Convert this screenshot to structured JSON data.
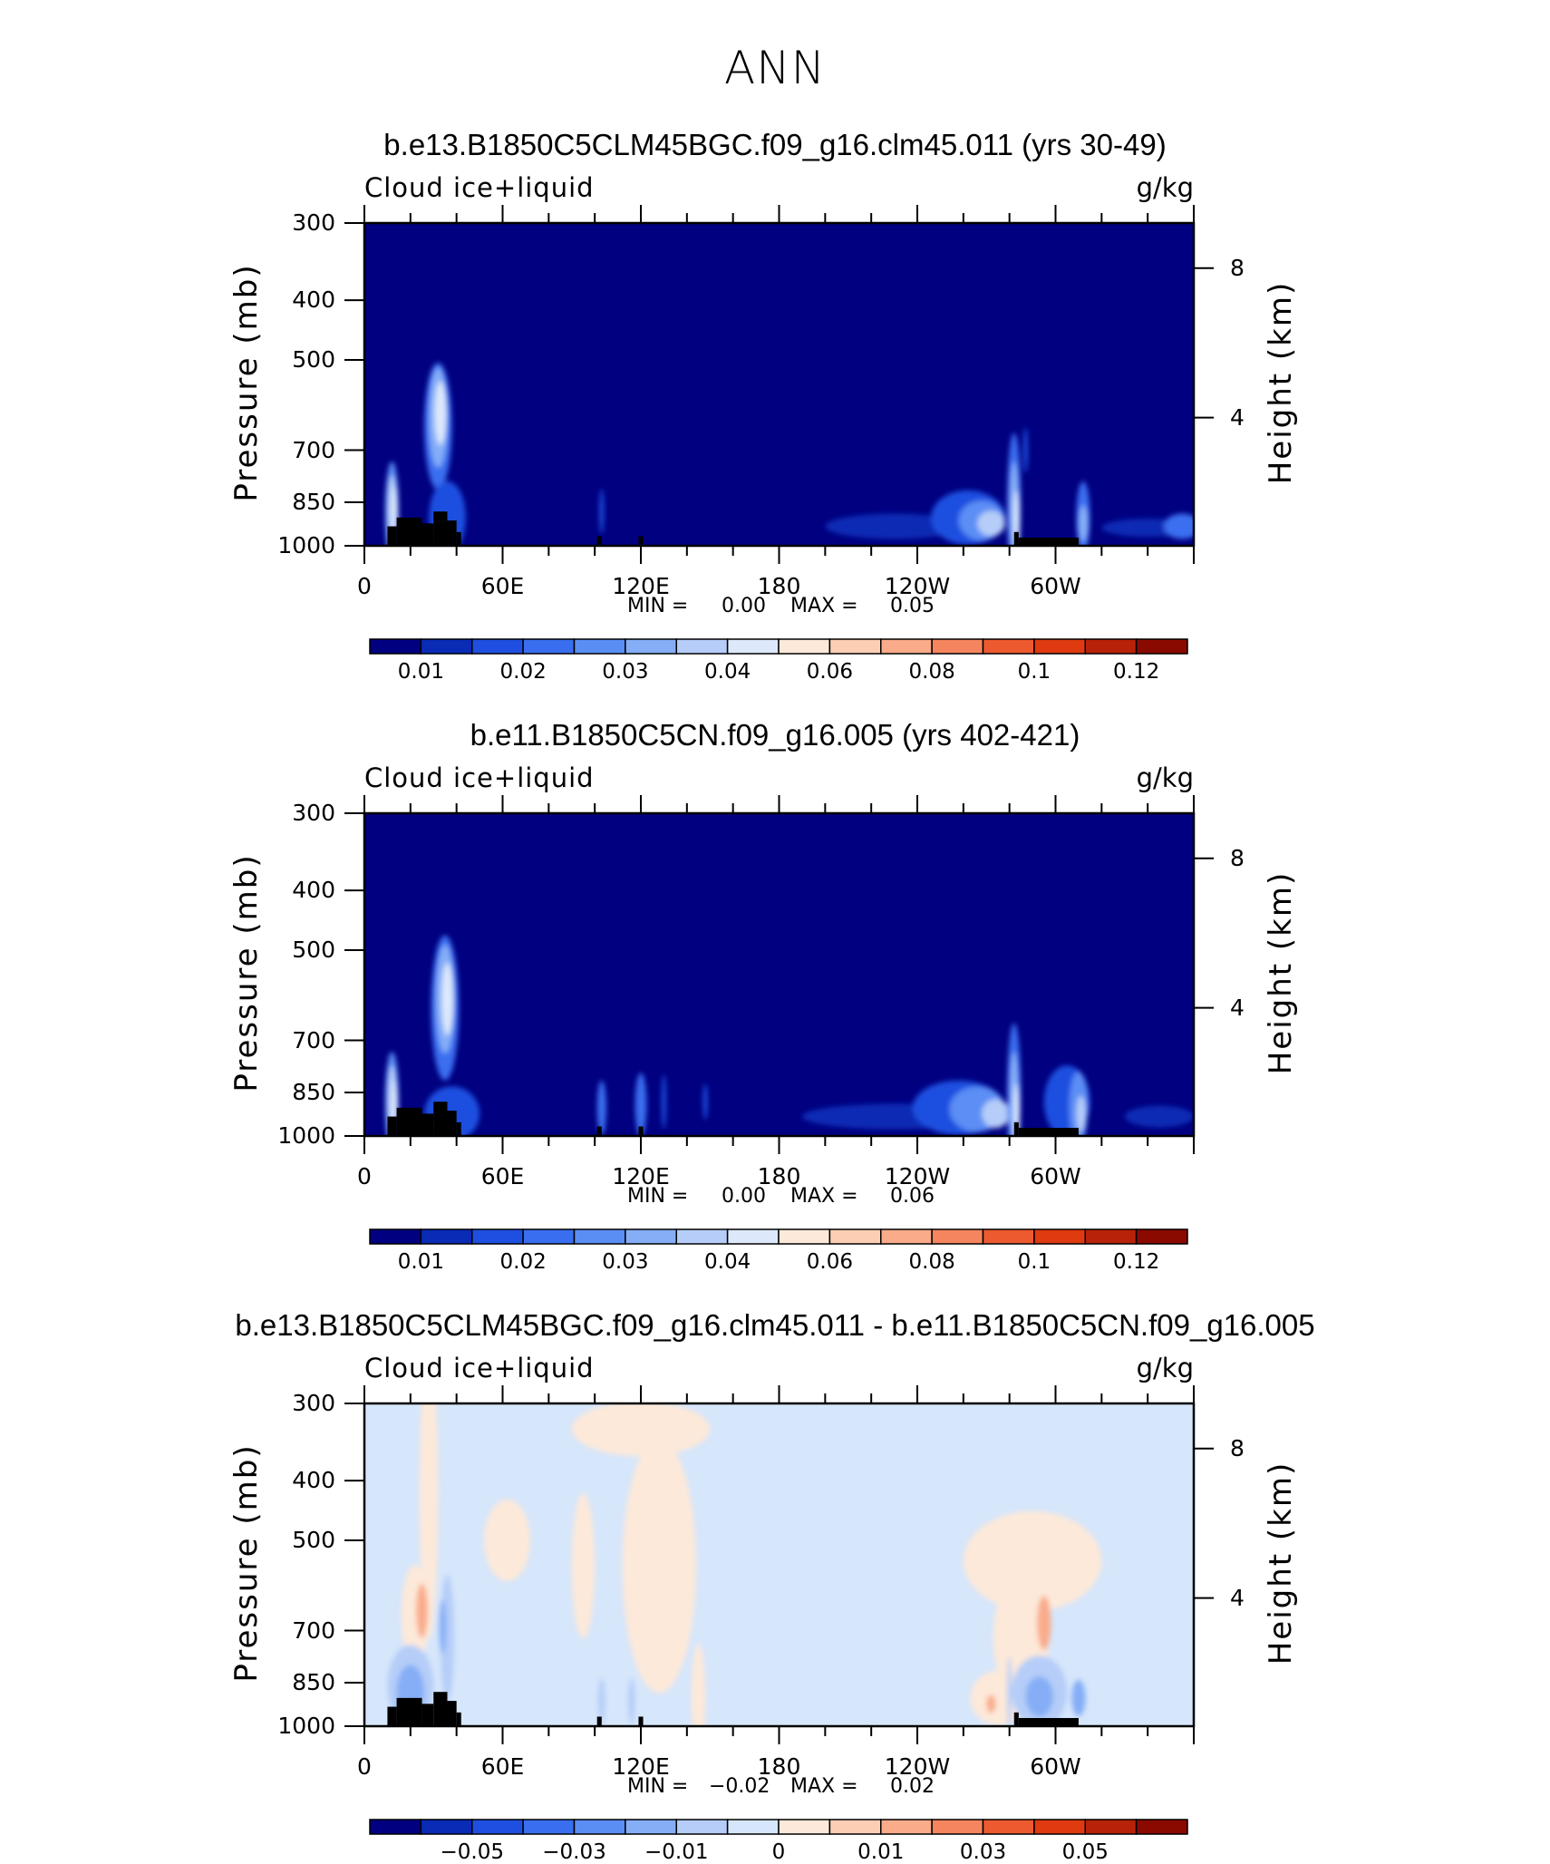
{
  "figure": {
    "title": "ANN"
  },
  "panels": [
    {
      "title": "b.e13.B1850C5CLM45BGC.f09_g16.clm45.011 (yrs 30-49)",
      "variable": "Cloud ice+liquid",
      "units": "g/kg",
      "ylabel_left": "Pressure (mb)",
      "ylabel_right": "Height (km)",
      "pressure_ticks": [
        "300",
        "400",
        "500",
        "700",
        "850",
        "1000"
      ],
      "height_ticks": [
        "8",
        "4"
      ],
      "x_ticks": [
        "0",
        "60E",
        "120E",
        "180",
        "120W",
        "60W"
      ],
      "min_label": "MIN =",
      "min_value": "0.00",
      "max_label": "MAX =",
      "max_value": "0.05",
      "colorbar_labels": [
        "0.01",
        "0.02",
        "0.03",
        "0.04",
        "0.06",
        "0.08",
        "0.1",
        "0.12"
      ]
    },
    {
      "title": "b.e11.B1850C5CN.f09_g16.005 (yrs 402-421)",
      "variable": "Cloud ice+liquid",
      "units": "g/kg",
      "ylabel_left": "Pressure (mb)",
      "ylabel_right": "Height (km)",
      "pressure_ticks": [
        "300",
        "400",
        "500",
        "700",
        "850",
        "1000"
      ],
      "height_ticks": [
        "8",
        "4"
      ],
      "x_ticks": [
        "0",
        "60E",
        "120E",
        "180",
        "120W",
        "60W"
      ],
      "min_label": "MIN =",
      "min_value": "0.00",
      "max_label": "MAX =",
      "max_value": "0.06",
      "colorbar_labels": [
        "0.01",
        "0.02",
        "0.03",
        "0.04",
        "0.06",
        "0.08",
        "0.1",
        "0.12"
      ]
    },
    {
      "title": "b.e13.B1850C5CLM45BGC.f09_g16.clm45.011 - b.e11.B1850C5CN.f09_g16.005",
      "variable": "Cloud ice+liquid",
      "units": "g/kg",
      "ylabel_left": "Pressure (mb)",
      "ylabel_right": "Height (km)",
      "pressure_ticks": [
        "300",
        "400",
        "500",
        "700",
        "850",
        "1000"
      ],
      "height_ticks": [
        "8",
        "4"
      ],
      "x_ticks": [
        "0",
        "60E",
        "120E",
        "180",
        "120W",
        "60W"
      ],
      "min_label": "MIN =",
      "min_value": "−0.02",
      "max_label": "MAX =",
      "max_value": "0.02",
      "colorbar_labels": [
        "−0.05",
        "−0.03",
        "−0.01",
        "0",
        "0.01",
        "0.03",
        "0.05"
      ]
    }
  ],
  "colors": {
    "abs_scale": [
      "#000080",
      "#0a2bb5",
      "#1f4fe0",
      "#3a6ef0",
      "#5b8ef5",
      "#85aef7",
      "#b5cdf8",
      "#dde9fb",
      "#fde9d9",
      "#fccfb5",
      "#f9ab8a",
      "#f5855e",
      "#ee5a2f",
      "#df3a10",
      "#b82208",
      "#8b0a00"
    ],
    "diff_scale": [
      "#000080",
      "#0a2bb5",
      "#1f4fe0",
      "#3a6ef0",
      "#5b8ef5",
      "#85aef7",
      "#b5cdf8",
      "#d6e6fb",
      "#fde9d9",
      "#fccfb5",
      "#f9ab8a",
      "#f5855e",
      "#ee5a2f",
      "#df3a10",
      "#b82208",
      "#8b0a00"
    ],
    "field_background": "#000080",
    "diff_background": "#d6e6fb",
    "terrain": "#000000"
  },
  "chart_data": [
    {
      "type": "heatmap",
      "title": "b.e13.B1850C5CLM45BGC.f09_g16.clm45.011 (yrs 30-49)",
      "subtitle": "Cloud ice+liquid",
      "units": "g/kg",
      "xlabel": "",
      "ylabel": "Pressure (mb)",
      "ylabel_right": "Height (km)",
      "x_ticks": [
        "0",
        "60E",
        "120E",
        "180",
        "120W",
        "60W"
      ],
      "y_ticks": [
        300,
        400,
        500,
        700,
        850,
        1000
      ],
      "y_scale": "log-pressure",
      "ylim": [
        1000,
        300
      ],
      "min": 0.0,
      "max": 0.05,
      "contour_levels": [
        0.005,
        0.01,
        0.015,
        0.02,
        0.025,
        0.03,
        0.035,
        0.04,
        0.05,
        0.06,
        0.07,
        0.08,
        0.09,
        0.1,
        0.11,
        0.12
      ],
      "features": [
        {
          "lon": 12,
          "p": 870,
          "value": 0.045
        },
        {
          "lon": 32,
          "p": 620,
          "value": 0.04
        },
        {
          "lon": 280,
          "p": 880,
          "value": 0.05
        },
        {
          "lon": 265,
          "p": 900,
          "value": 0.03
        }
      ]
    },
    {
      "type": "heatmap",
      "title": "b.e11.B1850C5CN.f09_g16.005 (yrs 402-421)",
      "subtitle": "Cloud ice+liquid",
      "units": "g/kg",
      "xlabel": "",
      "ylabel": "Pressure (mb)",
      "ylabel_right": "Height (km)",
      "x_ticks": [
        "0",
        "60E",
        "120E",
        "180",
        "120W",
        "60W"
      ],
      "y_ticks": [
        300,
        400,
        500,
        700,
        850,
        1000
      ],
      "y_scale": "log-pressure",
      "ylim": [
        1000,
        300
      ],
      "min": 0.0,
      "max": 0.06,
      "contour_levels": [
        0.005,
        0.01,
        0.015,
        0.02,
        0.025,
        0.03,
        0.035,
        0.04,
        0.05,
        0.06,
        0.07,
        0.08,
        0.09,
        0.1,
        0.11,
        0.12
      ],
      "features": [
        {
          "lon": 12,
          "p": 870,
          "value": 0.05
        },
        {
          "lon": 35,
          "p": 600,
          "value": 0.05
        },
        {
          "lon": 280,
          "p": 880,
          "value": 0.06
        },
        {
          "lon": 310,
          "p": 900,
          "value": 0.04
        }
      ]
    },
    {
      "type": "heatmap",
      "title": "b.e13.B1850C5CLM45BGC.f09_g16.clm45.011 - b.e11.B1850C5CN.f09_g16.005",
      "subtitle": "Cloud ice+liquid",
      "units": "g/kg",
      "xlabel": "",
      "ylabel": "Pressure (mb)",
      "ylabel_right": "Height (km)",
      "x_ticks": [
        "0",
        "60E",
        "120E",
        "180",
        "120W",
        "60W"
      ],
      "y_ticks": [
        300,
        400,
        500,
        700,
        850,
        1000
      ],
      "y_scale": "log-pressure",
      "ylim": [
        1000,
        300
      ],
      "min": -0.02,
      "max": 0.02,
      "contour_levels": [
        -0.06,
        -0.05,
        -0.04,
        -0.03,
        -0.02,
        -0.01,
        -0.005,
        0,
        0.005,
        0.01,
        0.02,
        0.03,
        0.04,
        0.05,
        0.06
      ],
      "features": [
        {
          "lon": 25,
          "p": 650,
          "value": 0.02
        },
        {
          "lon": 35,
          "p": 700,
          "value": -0.015
        },
        {
          "lon": 295,
          "p": 680,
          "value": 0.015
        },
        {
          "lon": 295,
          "p": 880,
          "value": -0.015
        }
      ]
    }
  ]
}
